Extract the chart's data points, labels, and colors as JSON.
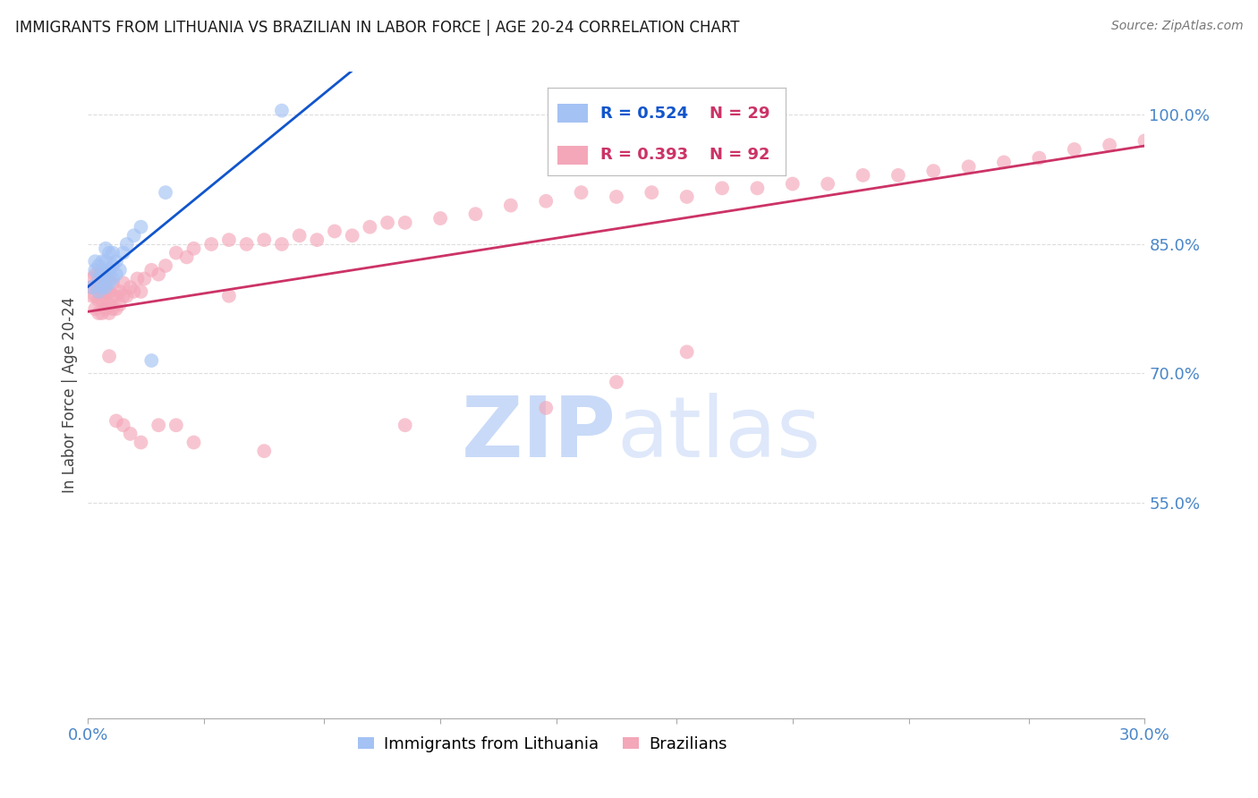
{
  "title": "IMMIGRANTS FROM LITHUANIA VS BRAZILIAN IN LABOR FORCE | AGE 20-24 CORRELATION CHART",
  "source": "Source: ZipAtlas.com",
  "ylabel": "In Labor Force | Age 20-24",
  "xlim": [
    0.0,
    0.3
  ],
  "ylim": [
    0.3,
    1.05
  ],
  "yticks": [
    0.55,
    0.7,
    0.85,
    1.0
  ],
  "ytick_labels": [
    "55.0%",
    "70.0%",
    "85.0%",
    "100.0%"
  ],
  "xticks": [
    0.0,
    0.033,
    0.067,
    0.1,
    0.133,
    0.167,
    0.2,
    0.233,
    0.267,
    0.3
  ],
  "xtick_show": [
    "0.0%",
    "",
    "",
    "",
    "",
    "",
    "",
    "",
    "",
    "30.0%"
  ],
  "lithuania_R": 0.524,
  "lithuania_N": 29,
  "brazil_R": 0.393,
  "brazil_N": 92,
  "blue_dot": "#a4c2f4",
  "pink_dot": "#f4a7b9",
  "blue_line": "#1155cc",
  "pink_line": "#cc3366",
  "blue_legend_text": "#1155cc",
  "pink_legend_text": "#cc3366",
  "legend_N_color": "#cc3366",
  "tick_color": "#4a86c8",
  "grid_color": "#dddddd",
  "title_color": "#1a1a1a",
  "watermark_ZIP_color": "#c9daf8",
  "watermark_atlas_color": "#c9daf8",
  "dot_size": 130,
  "dot_alpha": 0.65,
  "line_width": 2.0,
  "lithuania_x": [
    0.001,
    0.002,
    0.002,
    0.003,
    0.003,
    0.003,
    0.004,
    0.004,
    0.004,
    0.005,
    0.005,
    0.005,
    0.005,
    0.006,
    0.006,
    0.006,
    0.007,
    0.007,
    0.007,
    0.008,
    0.008,
    0.009,
    0.01,
    0.011,
    0.013,
    0.015,
    0.018,
    0.022,
    0.055
  ],
  "lithuania_y": [
    0.8,
    0.82,
    0.83,
    0.795,
    0.81,
    0.825,
    0.8,
    0.815,
    0.83,
    0.8,
    0.815,
    0.83,
    0.845,
    0.805,
    0.82,
    0.84,
    0.81,
    0.825,
    0.84,
    0.815,
    0.83,
    0.82,
    0.84,
    0.85,
    0.86,
    0.87,
    0.715,
    0.91,
    1.005
  ],
  "brazil_x": [
    0.001,
    0.001,
    0.001,
    0.002,
    0.002,
    0.002,
    0.002,
    0.003,
    0.003,
    0.003,
    0.003,
    0.004,
    0.004,
    0.004,
    0.004,
    0.004,
    0.005,
    0.005,
    0.005,
    0.005,
    0.006,
    0.006,
    0.006,
    0.006,
    0.007,
    0.007,
    0.007,
    0.008,
    0.008,
    0.009,
    0.009,
    0.01,
    0.01,
    0.011,
    0.012,
    0.013,
    0.014,
    0.015,
    0.016,
    0.018,
    0.02,
    0.022,
    0.025,
    0.028,
    0.03,
    0.035,
    0.04,
    0.045,
    0.05,
    0.055,
    0.06,
    0.065,
    0.07,
    0.075,
    0.08,
    0.085,
    0.09,
    0.1,
    0.11,
    0.12,
    0.13,
    0.14,
    0.15,
    0.16,
    0.17,
    0.18,
    0.19,
    0.2,
    0.21,
    0.22,
    0.23,
    0.24,
    0.25,
    0.26,
    0.27,
    0.28,
    0.29,
    0.3,
    0.15,
    0.13,
    0.17,
    0.09,
    0.05,
    0.04,
    0.03,
    0.025,
    0.02,
    0.015,
    0.012,
    0.01,
    0.008,
    0.006
  ],
  "brazil_y": [
    0.79,
    0.8,
    0.81,
    0.775,
    0.79,
    0.8,
    0.815,
    0.77,
    0.785,
    0.8,
    0.815,
    0.77,
    0.785,
    0.795,
    0.81,
    0.82,
    0.775,
    0.785,
    0.795,
    0.81,
    0.77,
    0.78,
    0.795,
    0.81,
    0.775,
    0.79,
    0.805,
    0.775,
    0.79,
    0.78,
    0.795,
    0.79,
    0.805,
    0.79,
    0.8,
    0.795,
    0.81,
    0.795,
    0.81,
    0.82,
    0.815,
    0.825,
    0.84,
    0.835,
    0.845,
    0.85,
    0.855,
    0.85,
    0.855,
    0.85,
    0.86,
    0.855,
    0.865,
    0.86,
    0.87,
    0.875,
    0.875,
    0.88,
    0.885,
    0.895,
    0.9,
    0.91,
    0.905,
    0.91,
    0.905,
    0.915,
    0.915,
    0.92,
    0.92,
    0.93,
    0.93,
    0.935,
    0.94,
    0.945,
    0.95,
    0.96,
    0.965,
    0.97,
    0.69,
    0.66,
    0.725,
    0.64,
    0.61,
    0.79,
    0.62,
    0.64,
    0.64,
    0.62,
    0.63,
    0.64,
    0.645,
    0.72
  ]
}
